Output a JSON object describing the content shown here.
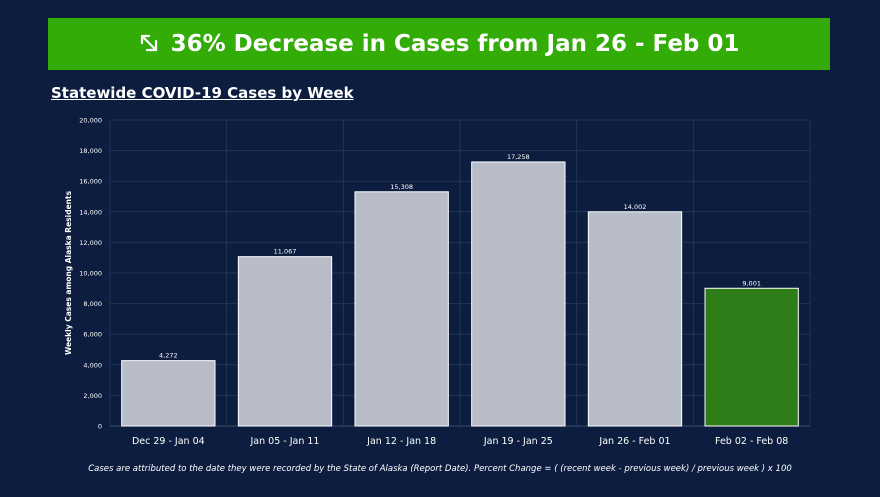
{
  "banner": {
    "text": "36% Decrease in Cases from Jan 26 - Feb 01",
    "icon": "arrow-down-right-icon"
  },
  "subtitle": "Statewide COVID-19 Cases by Week",
  "footnote": "Cases are attributed to the date they were recorded by the State of Alaska (Report Date). Percent Change = ( (recent week - previous week) / previous week ) x 100",
  "chart_data": {
    "type": "bar",
    "categories": [
      "Dec 29 - Jan 04",
      "Jan 05 - Jan 11",
      "Jan 12 - Jan 18",
      "Jan 19 - Jan 25",
      "Jan 26 - Feb 01",
      "Feb 02 - Feb 08"
    ],
    "values": [
      4272,
      11067,
      15308,
      17258,
      14002,
      9001
    ],
    "value_labels": [
      "4,272",
      "11,067",
      "15,308",
      "17,258",
      "14,002",
      "9,001"
    ],
    "ylabel": "Weekly Cases among Alaska Residents",
    "ylim": [
      0,
      20000
    ],
    "yticks": [
      0,
      2000,
      4000,
      6000,
      8000,
      10000,
      12000,
      14000,
      16000,
      18000,
      20000
    ],
    "ytick_labels": [
      "0",
      "2,000",
      "4,000",
      "6,000",
      "8,000",
      "10,000",
      "12,000",
      "14,000",
      "16,000",
      "18,000",
      "20,000"
    ],
    "grid": true,
    "legend": "none",
    "colors": {
      "default_bar": "#b7bcc8",
      "highlight_bar": "#2e7d18",
      "highlight_index": 5,
      "background": "#0c1d3f",
      "banner": "#34ac08",
      "grid": "#243453"
    }
  }
}
